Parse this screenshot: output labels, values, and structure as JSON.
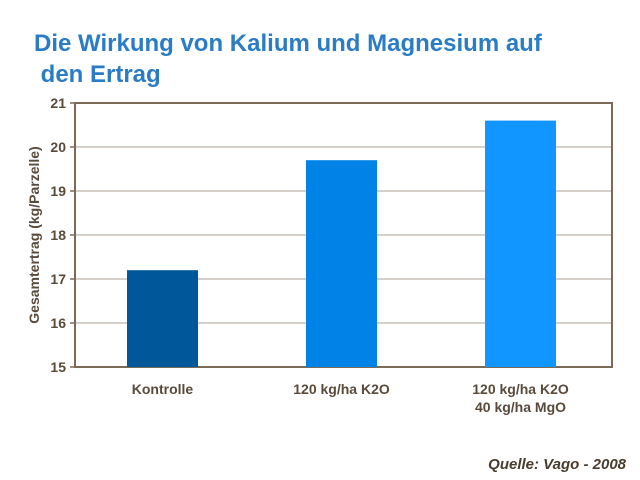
{
  "chart_data": {
    "type": "bar",
    "title": "Die Wirkung von Kalium und Magnesium auf\n den Ertrag",
    "categories": [
      "Kontrolle",
      "120 kg/ha K2O",
      "120 kg/ha K2O\n40 kg/ha MgO"
    ],
    "values": [
      17.2,
      19.7,
      20.6
    ],
    "colors": [
      "#005799",
      "#0082e6",
      "#1196ff"
    ],
    "ylabel": "Gesamtertrag (kg/Parzelle)",
    "xlabel": "",
    "ylim": [
      15,
      21
    ],
    "yticks": [
      15,
      16,
      17,
      18,
      19,
      20,
      21
    ],
    "grid": true,
    "legend": "none"
  },
  "source": "Quelle: Vago - 2008"
}
